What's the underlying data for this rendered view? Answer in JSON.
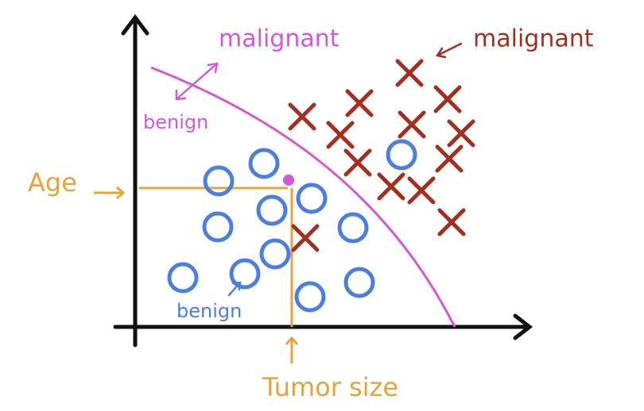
{
  "annotations": {
    "malignant_boundary": "malignant",
    "benign_boundary": "benign",
    "malignant_cluster": "malignant",
    "benign_cluster": "benign"
  },
  "axes": {
    "y_label": "Age",
    "x_label": "Tumor size"
  }
}
